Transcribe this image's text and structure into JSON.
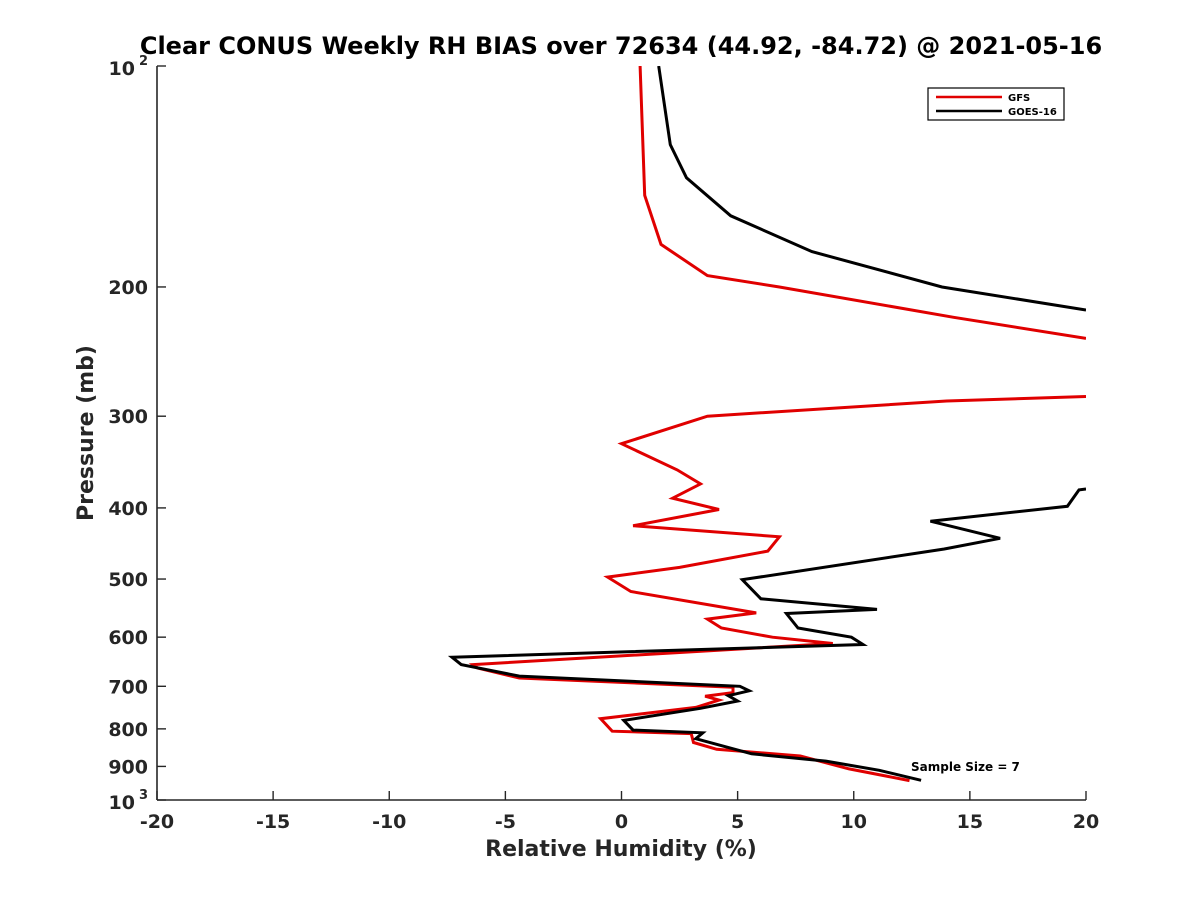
{
  "chart_data": {
    "type": "line",
    "title": "Clear CONUS Weekly RH BIAS over 72634 (44.92, -84.72) @ 2021-05-16",
    "xlabel": "Relative Humidity (%)",
    "ylabel": "Pressure (mb)",
    "xlim": [
      -20,
      20
    ],
    "ylim": [
      100,
      1000
    ],
    "yscale": "log",
    "yreversed": true,
    "x_ticks": [
      {
        "value": -20,
        "label": "-20"
      },
      {
        "value": -15,
        "label": "-15"
      },
      {
        "value": -10,
        "label": "-10"
      },
      {
        "value": -5,
        "label": "-5"
      },
      {
        "value": 0,
        "label": "0"
      },
      {
        "value": 5,
        "label": "5"
      },
      {
        "value": 10,
        "label": "10"
      },
      {
        "value": 15,
        "label": "15"
      },
      {
        "value": 20,
        "label": "20"
      }
    ],
    "y_ticks": [
      {
        "value": 100,
        "label": "10",
        "sup": "2"
      },
      {
        "value": 200,
        "label": "200"
      },
      {
        "value": 300,
        "label": "300"
      },
      {
        "value": 400,
        "label": "400"
      },
      {
        "value": 500,
        "label": "500"
      },
      {
        "value": 600,
        "label": "600"
      },
      {
        "value": 700,
        "label": "700"
      },
      {
        "value": 800,
        "label": "800"
      },
      {
        "value": 900,
        "label": "900"
      },
      {
        "value": 1000,
        "label": "10",
        "sup": "3"
      }
    ],
    "legend": {
      "position": "top-right"
    },
    "annotation": "Sample Size = 7",
    "series": [
      {
        "name": "GFS",
        "color": "#e00000",
        "segments": [
          [
            [
              0.8,
              100
            ],
            [
              1.0,
              150
            ],
            [
              1.7,
              175
            ],
            [
              3.7,
              193
            ],
            [
              6.8,
              200
            ],
            [
              14.3,
              220
            ],
            [
              20,
              235
            ]
          ],
          [
            [
              20,
              282
            ],
            [
              14,
              286
            ],
            [
              3.7,
              300
            ],
            [
              0.0,
              327
            ],
            [
              2.4,
              355
            ],
            [
              3.4,
              371
            ],
            [
              2.2,
              388
            ],
            [
              4.2,
              402
            ],
            [
              0.5,
              423
            ],
            [
              6.8,
              438
            ],
            [
              6.3,
              458
            ],
            [
              2.5,
              482
            ],
            [
              -0.6,
              497
            ],
            [
              0.4,
              520
            ],
            [
              5.8,
              556
            ],
            [
              3.7,
              567
            ],
            [
              4.3,
              583
            ],
            [
              6.5,
              600
            ],
            [
              9.1,
              612
            ],
            [
              -6.4,
              654
            ],
            [
              -6.2,
              661
            ],
            [
              -4.4,
              682
            ],
            [
              4.8,
              702
            ],
            [
              4.8,
              714
            ],
            [
              3.6,
              722
            ],
            [
              4.2,
              731
            ],
            [
              3.2,
              748
            ],
            [
              -0.9,
              775
            ],
            [
              -0.4,
              806
            ],
            [
              3.0,
              812
            ],
            [
              3.1,
              835
            ],
            [
              4.1,
              853
            ],
            [
              7.7,
              871
            ],
            [
              9.8,
              907
            ],
            [
              12.4,
              941
            ]
          ]
        ]
      },
      {
        "name": "GOES-16",
        "color": "#000000",
        "segments": [
          [
            [
              1.6,
              100
            ],
            [
              2.1,
              128
            ],
            [
              2.8,
              142
            ],
            [
              4.7,
              160
            ],
            [
              8.2,
              179
            ],
            [
              13.8,
              200
            ],
            [
              20,
              215
            ]
          ],
          [
            [
              20,
              377
            ],
            [
              19.7,
              378
            ],
            [
              19.2,
              398
            ],
            [
              13.3,
              417
            ],
            [
              16.3,
              440
            ],
            [
              13.9,
              455
            ],
            [
              5.2,
              501
            ],
            [
              6.0,
              532
            ],
            [
              11.0,
              550
            ],
            [
              7.1,
              557
            ],
            [
              7.6,
              583
            ],
            [
              9.9,
              600
            ],
            [
              10.4,
              614
            ],
            [
              -7.3,
              639
            ],
            [
              -6.9,
              654
            ],
            [
              -4.4,
              678
            ],
            [
              5.1,
              700
            ],
            [
              5.5,
              710
            ],
            [
              4.6,
              721
            ],
            [
              5.0,
              733
            ],
            [
              3.4,
              750
            ],
            [
              0.1,
              779
            ],
            [
              0.5,
              803
            ],
            [
              3.5,
              810
            ],
            [
              3.2,
              825
            ],
            [
              5.6,
              865
            ],
            [
              8.8,
              885
            ],
            [
              11.1,
              911
            ],
            [
              12.9,
              940
            ]
          ]
        ]
      }
    ]
  }
}
